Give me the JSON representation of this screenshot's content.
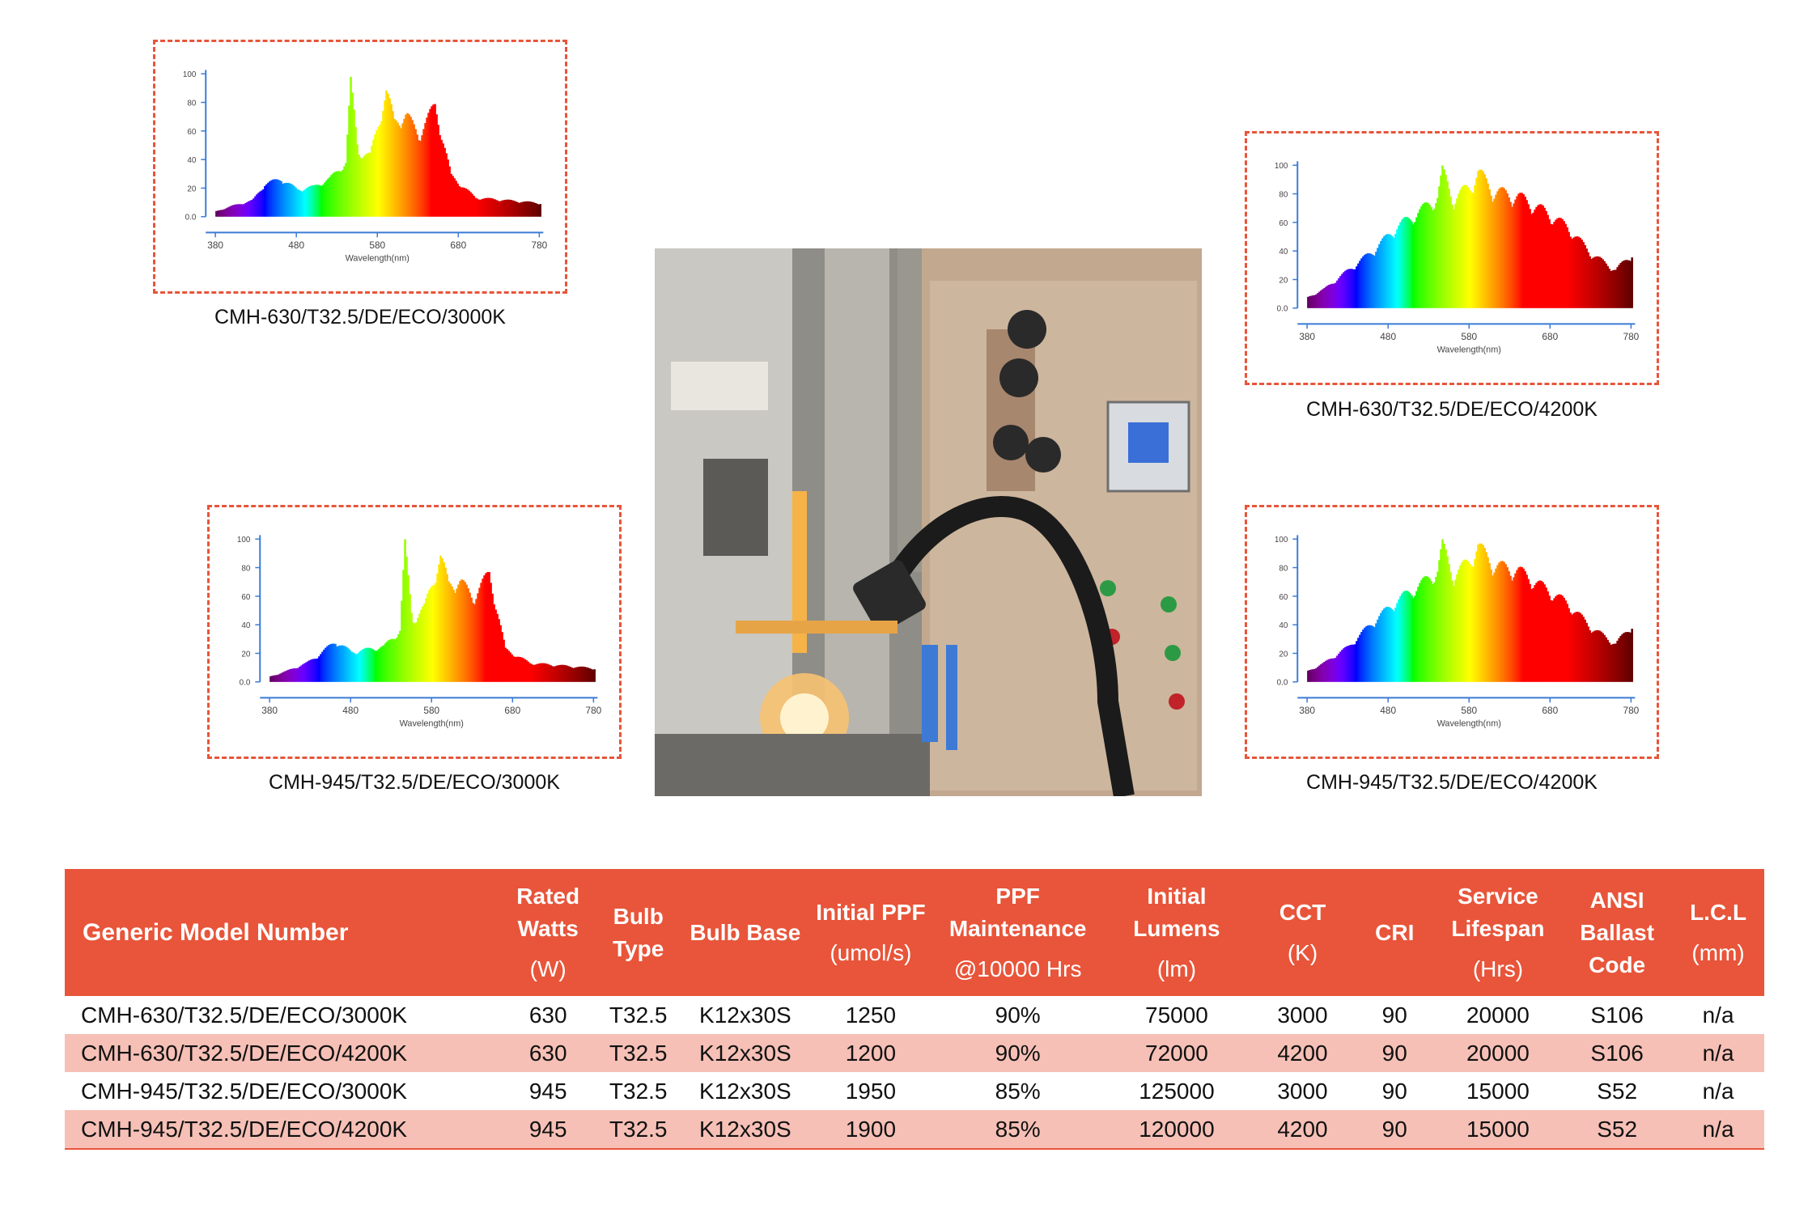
{
  "spectra": [
    {
      "caption": "CMH-630/T32.5/DE/ECO/3000K",
      "cct": "3000K",
      "y_ticks": [
        "100",
        "80",
        "60",
        "40",
        "20",
        "0.0"
      ],
      "x_ticks": [
        "380",
        "480",
        "580",
        "680",
        "780"
      ],
      "x_label": "Wavelength(nm)",
      "peaks": [
        [
          380,
          4
        ],
        [
          400,
          8
        ],
        [
          425,
          12
        ],
        [
          440,
          24
        ],
        [
          460,
          28
        ],
        [
          480,
          20
        ],
        [
          500,
          22
        ],
        [
          520,
          28
        ],
        [
          540,
          40
        ],
        [
          546,
          98
        ],
        [
          555,
          48
        ],
        [
          570,
          45
        ],
        [
          590,
          92
        ],
        [
          600,
          70
        ],
        [
          615,
          75
        ],
        [
          630,
          60
        ],
        [
          650,
          82
        ],
        [
          670,
          30
        ],
        [
          700,
          14
        ],
        [
          780,
          10
        ]
      ]
    },
    {
      "caption": "CMH-630/T32.5/DE/ECO/4200K",
      "cct": "4200K",
      "y_ticks": [
        "100",
        "80",
        "60",
        "40",
        "20",
        "0.0"
      ],
      "x_ticks": [
        "380",
        "480",
        "580",
        "680",
        "780"
      ],
      "x_label": "Wavelength(nm)",
      "peaks": [
        [
          380,
          8
        ],
        [
          400,
          14
        ],
        [
          430,
          28
        ],
        [
          460,
          42
        ],
        [
          490,
          60
        ],
        [
          520,
          72
        ],
        [
          540,
          82
        ],
        [
          546,
          100
        ],
        [
          560,
          80
        ],
        [
          580,
          90
        ],
        [
          590,
          100
        ],
        [
          610,
          86
        ],
        [
          640,
          82
        ],
        [
          670,
          72
        ],
        [
          700,
          60
        ],
        [
          730,
          40
        ],
        [
          760,
          28
        ],
        [
          780,
          40
        ]
      ]
    },
    {
      "caption": "CMH-945/T32.5/DE/ECO/3000K",
      "cct": "3000K",
      "y_ticks": [
        "100",
        "80",
        "60",
        "40",
        "20",
        "0.0"
      ],
      "x_ticks": [
        "380",
        "480",
        "580",
        "680",
        "780"
      ],
      "x_label": "Wavelength(nm)",
      "peaks": [
        [
          380,
          4
        ],
        [
          400,
          8
        ],
        [
          425,
          14
        ],
        [
          440,
          20
        ],
        [
          460,
          30
        ],
        [
          480,
          22
        ],
        [
          500,
          24
        ],
        [
          520,
          26
        ],
        [
          540,
          38
        ],
        [
          546,
          100
        ],
        [
          555,
          45
        ],
        [
          570,
          55
        ],
        [
          590,
          92
        ],
        [
          600,
          72
        ],
        [
          615,
          74
        ],
        [
          630,
          62
        ],
        [
          650,
          80
        ],
        [
          670,
          24
        ],
        [
          700,
          14
        ],
        [
          780,
          10
        ]
      ]
    },
    {
      "caption": "CMH-945/T32.5/DE/ECO/4200K",
      "cct": "4200K",
      "y_ticks": [
        "100",
        "80",
        "60",
        "40",
        "20",
        "0.0"
      ],
      "x_ticks": [
        "380",
        "480",
        "580",
        "680",
        "780"
      ],
      "x_label": "Wavelength(nm)",
      "peaks": [
        [
          380,
          8
        ],
        [
          400,
          14
        ],
        [
          430,
          26
        ],
        [
          460,
          44
        ],
        [
          490,
          60
        ],
        [
          520,
          72
        ],
        [
          540,
          82
        ],
        [
          546,
          100
        ],
        [
          560,
          78
        ],
        [
          580,
          90
        ],
        [
          590,
          100
        ],
        [
          610,
          86
        ],
        [
          640,
          82
        ],
        [
          670,
          70
        ],
        [
          700,
          58
        ],
        [
          730,
          40
        ],
        [
          760,
          28
        ],
        [
          780,
          42
        ]
      ]
    }
  ],
  "photo": {
    "label": "Lamp manufacturing machine photo"
  },
  "table": {
    "headers": [
      {
        "title": "Generic Model Number",
        "unit": ""
      },
      {
        "title": "Rated Watts",
        "unit": "(W)"
      },
      {
        "title": "Bulb Type",
        "unit": ""
      },
      {
        "title": "Bulb Base",
        "unit": ""
      },
      {
        "title": "Initial PPF",
        "unit": "(umol/s)"
      },
      {
        "title": "PPF Maintenance",
        "unit": "@10000 Hrs"
      },
      {
        "title": "Initial Lumens",
        "unit": "(lm)"
      },
      {
        "title": "CCT",
        "unit": "(K)"
      },
      {
        "title": "CRI",
        "unit": ""
      },
      {
        "title": "Service Lifespan",
        "unit": "(Hrs)"
      },
      {
        "title": "ANSI Ballast Code",
        "unit": ""
      },
      {
        "title": "L.C.L",
        "unit": "(mm)"
      }
    ],
    "rows": [
      [
        "CMH-630/T32.5/DE/ECO/3000K",
        "630",
        "T32.5",
        "K12x30S",
        "1250",
        "90%",
        "75000",
        "3000",
        "90",
        "20000",
        "S106",
        "n/a"
      ],
      [
        "CMH-630/T32.5/DE/ECO/4200K",
        "630",
        "T32.5",
        "K12x30S",
        "1200",
        "90%",
        "72000",
        "4200",
        "90",
        "20000",
        "S106",
        "n/a"
      ],
      [
        "CMH-945/T32.5/DE/ECO/3000K",
        "945",
        "T32.5",
        "K12x30S",
        "1950",
        "85%",
        "125000",
        "3000",
        "90",
        "15000",
        "S52",
        "n/a"
      ],
      [
        "CMH-945/T32.5/DE/ECO/4200K",
        "945",
        "T32.5",
        "K12x30S",
        "1900",
        "85%",
        "120000",
        "4200",
        "90",
        "15000",
        "S52",
        "n/a"
      ]
    ]
  }
}
